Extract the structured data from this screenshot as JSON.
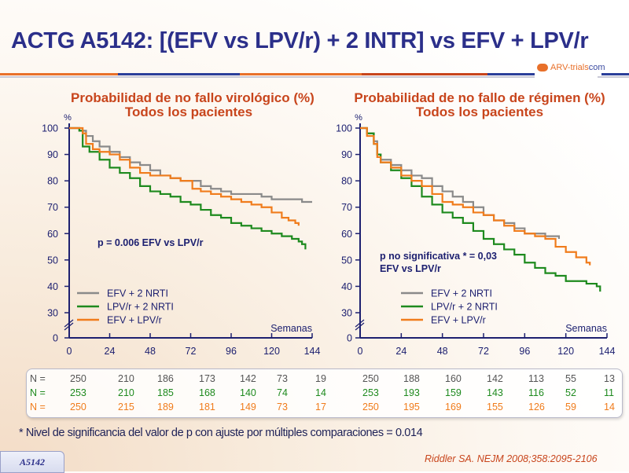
{
  "header": {
    "title": "ACTG A5142: [(EFV vs LPV/r) + 2 INTR] vs EFV + LPV/r",
    "logo_text_a": "ARV-trials",
    "logo_text_b": "com"
  },
  "colors": {
    "title": "#2b2f8a",
    "chart_title": "#c8451c",
    "axis": "#1d2070",
    "series_gray": "#8a8a8a",
    "series_green": "#1e8a1e",
    "series_orange": "#f07c1c"
  },
  "chart_data": [
    {
      "type": "line",
      "title": "Probabilidad de no fallo virológico (%)",
      "subtitle": "Todos los pacientes",
      "ylabel": "%",
      "xlabel": "Semanas",
      "x_ticks": [
        "0",
        "24",
        "48",
        "72",
        "96",
        "120",
        "144"
      ],
      "y_ticks": [
        "0",
        "30",
        "40",
        "50",
        "60",
        "70",
        "80",
        "90",
        "100"
      ],
      "xlim": [
        0,
        144
      ],
      "ylim": [
        25,
        100
      ],
      "axis_break": true,
      "annotation": "p = 0.006 EFV vs LPV/r",
      "legend": [
        "EFV + 2 NRTI",
        "LPV/r + 2 NRTI",
        "EFV + LPV/r"
      ],
      "legend_position": "bottom-left",
      "series": [
        {
          "name": "EFV + 2 NRTI",
          "x": [
            0,
            6,
            10,
            14,
            18,
            24,
            30,
            36,
            42,
            48,
            54,
            60,
            66,
            72,
            78,
            84,
            90,
            96,
            108,
            114,
            120,
            126,
            138,
            144
          ],
          "y": [
            100,
            99,
            97,
            95,
            93,
            91,
            89,
            87,
            86,
            84,
            82,
            81,
            80,
            80,
            78,
            77,
            76,
            75,
            75,
            74,
            73,
            73,
            72,
            72
          ]
        },
        {
          "name": "LPV/r + 2 NRTI",
          "x": [
            0,
            6,
            8,
            12,
            18,
            24,
            30,
            36,
            42,
            48,
            54,
            60,
            66,
            72,
            78,
            84,
            90,
            96,
            102,
            108,
            114,
            120,
            126,
            132,
            136,
            138,
            140
          ],
          "y": [
            100,
            99,
            93,
            91,
            88,
            85,
            83,
            81,
            78,
            76,
            75,
            74,
            72,
            71,
            69,
            67,
            66,
            64,
            63,
            62,
            61,
            60,
            59,
            58,
            57,
            56,
            54
          ]
        },
        {
          "name": "EFV + LPV/r",
          "x": [
            0,
            8,
            10,
            14,
            18,
            24,
            30,
            36,
            42,
            48,
            54,
            60,
            66,
            72,
            73,
            78,
            84,
            90,
            96,
            102,
            108,
            114,
            120,
            126,
            130,
            134,
            136
          ],
          "y": [
            100,
            98,
            94,
            92,
            91,
            90,
            88,
            85,
            83,
            82,
            82,
            81,
            80,
            80,
            77,
            76,
            75,
            74,
            73,
            72,
            71,
            70,
            68,
            66,
            65,
            64,
            63
          ]
        }
      ]
    },
    {
      "type": "line",
      "title": "Probabilidad de no fallo de régimen (%)",
      "subtitle": "Todos los pacientes",
      "ylabel": "%",
      "xlabel": "Semanas",
      "x_ticks": [
        "0",
        "24",
        "48",
        "72",
        "96",
        "120",
        "144"
      ],
      "y_ticks": [
        "0",
        "30",
        "40",
        "50",
        "60",
        "70",
        "80",
        "90",
        "100"
      ],
      "xlim": [
        0,
        144
      ],
      "ylim": [
        25,
        100
      ],
      "axis_break": true,
      "annotation": "p no significativa * = 0,03\nEFV vs LPV/r",
      "annotation_lines": [
        "p no significativa * = 0,03",
        "EFV vs LPV/r"
      ],
      "legend": [
        "EFV + 2 NRTI",
        "LPV/r + 2 NRTI",
        "EFV + LPV/r"
      ],
      "legend_position": "bottom-left",
      "series": [
        {
          "name": "EFV + 2 NRTI",
          "x": [
            0,
            4,
            8,
            10,
            12,
            18,
            24,
            30,
            36,
            42,
            48,
            54,
            60,
            66,
            72,
            78,
            84,
            90,
            96,
            102,
            108,
            114,
            116
          ],
          "y": [
            100,
            98,
            95,
            90,
            88,
            86,
            84,
            82,
            81,
            78,
            76,
            74,
            72,
            70,
            67,
            65,
            64,
            62,
            60,
            60,
            59,
            59,
            58
          ]
        },
        {
          "name": "LPV/r + 2 NRTI",
          "x": [
            0,
            4,
            8,
            10,
            12,
            18,
            24,
            30,
            36,
            42,
            48,
            54,
            60,
            66,
            72,
            78,
            84,
            90,
            96,
            102,
            108,
            114,
            120,
            126,
            132,
            138,
            140
          ],
          "y": [
            100,
            98,
            94,
            90,
            87,
            84,
            81,
            78,
            74,
            71,
            68,
            66,
            64,
            61,
            58,
            56,
            54,
            52,
            49,
            47,
            45,
            44,
            42,
            42,
            41,
            40,
            38
          ]
        },
        {
          "name": "EFV + LPV/r",
          "x": [
            0,
            4,
            8,
            10,
            12,
            18,
            24,
            30,
            36,
            42,
            48,
            54,
            60,
            66,
            72,
            78,
            84,
            90,
            96,
            102,
            108,
            114,
            120,
            126,
            132,
            134
          ],
          "y": [
            100,
            97,
            94,
            89,
            87,
            85,
            82,
            80,
            78,
            75,
            72,
            71,
            70,
            68,
            67,
            65,
            63,
            61,
            60,
            59,
            58,
            55,
            53,
            51,
            49,
            48
          ]
        }
      ]
    }
  ],
  "n_table": {
    "label": "N =",
    "left": [
      [
        "250",
        "210",
        "186",
        "173",
        "142",
        "73",
        "19"
      ],
      [
        "253",
        "210",
        "185",
        "168",
        "140",
        "74",
        "14"
      ],
      [
        "250",
        "215",
        "189",
        "181",
        "149",
        "73",
        "17"
      ]
    ],
    "right": [
      [
        "250",
        "188",
        "160",
        "142",
        "113",
        "55",
        "13"
      ],
      [
        "253",
        "193",
        "159",
        "143",
        "116",
        "52",
        "11"
      ],
      [
        "250",
        "195",
        "169",
        "155",
        "126",
        "59",
        "14"
      ]
    ]
  },
  "footer": {
    "note": "* Nivel de significancia del valor de p con ajuste por múltiples comparaciones = 0.014",
    "badge": "A5142",
    "reference": "Riddler SA. NEJM 2008;358:2095-2106"
  }
}
